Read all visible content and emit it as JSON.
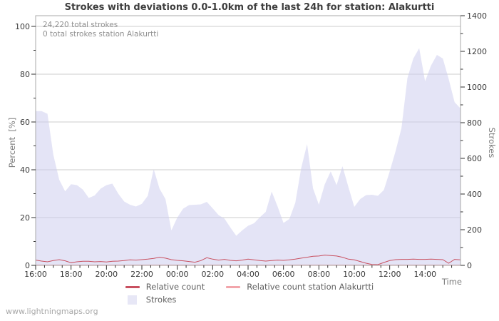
{
  "title": "Strokes with deviations 0.0-1.0km of the last 24h for station: Alakurtti",
  "annotations": {
    "total": "24,220 total strokes",
    "station": "0 total strokes station Alakurtti"
  },
  "axes": {
    "left_label": "Percent  [%]",
    "right_label": "Strokes",
    "x_label": "Time"
  },
  "legend": [
    {
      "label": "Relative count",
      "color": "#c85060",
      "type": "line"
    },
    {
      "label": "Relative count station Alakurtti",
      "color": "#f2a5ab",
      "type": "line"
    },
    {
      "label": "Strokes",
      "color": "#e7e7f6",
      "type": "area"
    }
  ],
  "watermark": "www.lightningmaps.org",
  "colors": {
    "grid": "#cdcdcd",
    "frame": "#a8a8a8",
    "tick": "#2e2e2e",
    "tick_label": "#383838",
    "area_fill": "rgba(205,205,238,0.55)"
  },
  "chart_data": {
    "type": "area",
    "title": "Strokes with deviations 0.0-1.0km of the last 24h for station: Alakurtti",
    "xlabel": "Time",
    "ylabel_left": "Percent [%]",
    "ylabel_right": "Strokes",
    "x_start": "16:00",
    "x_interval_minutes": 20,
    "x_span_hours": 24,
    "x_tick_labels": [
      "16:00",
      "18:00",
      "20:00",
      "22:00",
      "00:00",
      "02:00",
      "04:00",
      "06:00",
      "08:00",
      "10:00",
      "12:00",
      "14:00"
    ],
    "x_major_tick_hours": 2,
    "x_minor_tick_hours": 0.5,
    "left_ticks": [
      0,
      20,
      40,
      60,
      80,
      100
    ],
    "left_minor_step": 10,
    "right_ticks": [
      0,
      200,
      400,
      600,
      800,
      1000,
      1200,
      1400
    ],
    "right_minor_step": 100,
    "ylim_left_percent": [
      0,
      100
    ],
    "ylim_right_strokes": [
      0,
      1400
    ],
    "grid": "horizontal",
    "legend_position": "bottom",
    "series": [
      {
        "name": "Strokes",
        "type": "area",
        "axis": "right_strokes",
        "values": [
          865,
          865,
          850,
          620,
          480,
          415,
          455,
          450,
          425,
          378,
          392,
          430,
          450,
          458,
          402,
          358,
          340,
          330,
          345,
          390,
          540,
          430,
          372,
          196,
          268,
          318,
          338,
          340,
          342,
          356,
          320,
          282,
          262,
          212,
          166,
          196,
          222,
          236,
          270,
          300,
          414,
          330,
          238,
          260,
          350,
          545,
          680,
          432,
          340,
          455,
          527,
          450,
          556,
          440,
          328,
          372,
          394,
          396,
          390,
          422,
          527,
          640,
          770,
          1050,
          1160,
          1218,
          1032,
          1120,
          1180,
          1160,
          1045,
          915,
          880
        ]
      },
      {
        "name": "Relative count",
        "type": "line",
        "axis": "left_percent",
        "values": [
          2.2,
          1.8,
          1.5,
          2.0,
          2.4,
          1.9,
          1.1,
          1.5,
          1.7,
          1.7,
          1.5,
          1.6,
          1.4,
          1.7,
          1.8,
          2.0,
          2.3,
          2.2,
          2.4,
          2.6,
          2.9,
          3.4,
          3.0,
          2.4,
          2.1,
          1.9,
          1.6,
          1.3,
          2.0,
          3.2,
          2.6,
          2.2,
          2.5,
          2.1,
          1.9,
          2.2,
          2.6,
          2.3,
          2.0,
          1.8,
          2.0,
          2.2,
          2.1,
          2.3,
          2.6,
          3.0,
          3.4,
          3.8,
          3.9,
          4.3,
          4.1,
          3.9,
          3.4,
          2.6,
          2.3,
          1.6,
          0.9,
          0.4,
          0.3,
          1.2,
          2.0,
          2.4,
          2.5,
          2.5,
          2.6,
          2.5,
          2.5,
          2.6,
          2.5,
          2.4,
          0.9,
          2.5,
          2.3
        ]
      },
      {
        "name": "Relative count station Alakurtti",
        "type": "line",
        "axis": "left_percent",
        "constant_value": 0
      }
    ]
  }
}
